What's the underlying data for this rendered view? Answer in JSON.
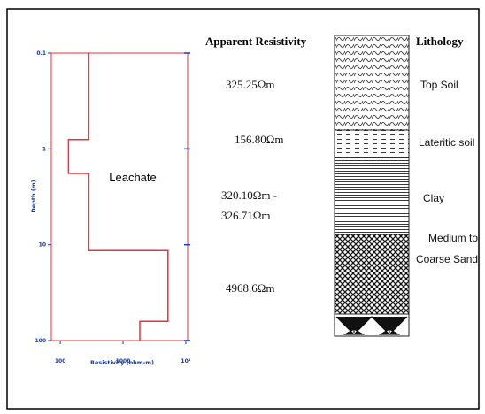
{
  "chart_data": {
    "type": "line",
    "x_label": "Resistivity (ohm-m)",
    "y_label": "Depth (m)",
    "annotation": "Leachate",
    "x_log": true,
    "y_log": true,
    "y_inverted": true,
    "xlim": [
      72,
      10700
    ],
    "ylim": [
      0.1,
      100
    ],
    "xticks": [
      100,
      1000,
      {
        "value": 10000,
        "label": "10⁴"
      }
    ],
    "yticks": [
      0.1,
      1,
      10,
      100
    ],
    "series": [
      {
        "name": null,
        "color": "#e8323c",
        "x": [
          280,
          280,
          135,
          135,
          280,
          280,
          5200,
          5200,
          1850,
          1850
        ],
        "values": [
          0.1,
          0.8,
          0.8,
          1.8,
          1.8,
          11.5,
          11.5,
          63,
          63,
          100
        ]
      }
    ]
  },
  "resistivity_header": "Apparent Resistivity",
  "lithology_header": "Lithology",
  "layers": [
    {
      "resistivity": [
        "325.25Ωm"
      ],
      "lithology": [
        "Top Soil"
      ]
    },
    {
      "resistivity": [
        "156.80Ωm"
      ],
      "lithology": [
        "Lateritic soil"
      ]
    },
    {
      "resistivity": [
        "320.10Ωm -",
        "326.71Ωm"
      ],
      "lithology": [
        "Clay"
      ]
    },
    {
      "resistivity": [
        "4968.6Ωm"
      ],
      "lithology": [
        "Medium to",
        "Coarse Sand"
      ]
    }
  ]
}
